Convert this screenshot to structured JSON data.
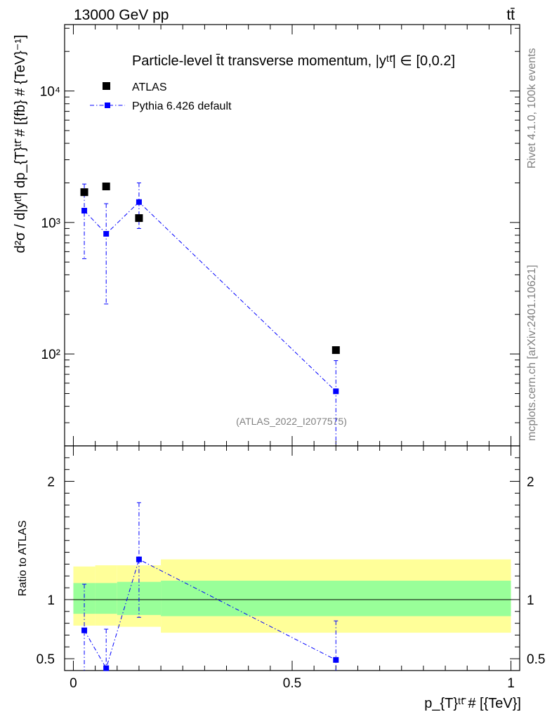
{
  "header": {
    "left": "13000 GeV pp",
    "right": "tt̄"
  },
  "side_labels": {
    "rivet": "Rivet 4.1.0,  100k events",
    "mcplots": "mcplots.cern.ch [arXiv:2401.10621]"
  },
  "chart_data": [
    {
      "type": "scatter",
      "panel": "main",
      "title": "Particle-level t̄t transverse momentum, |yᵗᵗ̄| ∈ [0,0.2]",
      "watermark": "(ATLAS_2022_I2077575)",
      "ylabel": "d²σ / d|yᵗᵗ̄| dp_{T}ᵗᵗ̄ # [{fb} # {TeV}⁻¹]",
      "xlim": [
        -0.02,
        1.02
      ],
      "ylim": [
        20,
        32000
      ],
      "yscale": "log",
      "ytick_labels": [
        "10²",
        "10³",
        "10⁴"
      ],
      "ytick_values": [
        100,
        1000,
        10000
      ],
      "legend": [
        "ATLAS",
        "Pythia 6.426 default"
      ],
      "series": [
        {
          "name": "ATLAS",
          "marker": "square",
          "color": "#000000",
          "x": [
            0.025,
            0.075,
            0.15,
            0.6
          ],
          "y": [
            1700,
            1880,
            1080,
            107
          ]
        },
        {
          "name": "Pythia 6.426 default",
          "marker": "square",
          "line": "dash-dot",
          "color": "#0000ff",
          "x": [
            0.025,
            0.075,
            0.15,
            0.6
          ],
          "y": [
            1230,
            820,
            1430,
            52
          ],
          "yerr_low": [
            700,
            580,
            530,
            32
          ],
          "yerr_high": [
            730,
            570,
            570,
            37
          ]
        }
      ]
    },
    {
      "type": "scatter",
      "panel": "ratio",
      "ylabel": "Ratio to ATLAS",
      "xlabel": "p_{T}ᵗᵗ̄ # [{TeV}]",
      "xlim": [
        -0.02,
        1.02
      ],
      "ylim": [
        0.4,
        2.3
      ],
      "xtick_labels": [
        "0",
        "0.5",
        "1"
      ],
      "xtick_values": [
        0,
        0.5,
        1
      ],
      "ytick_labels": [
        "0.5",
        "1",
        "2"
      ],
      "ytick_values": [
        0.5,
        1,
        2
      ],
      "bands": [
        {
          "x": [
            0.0,
            0.05
          ],
          "inner": [
            0.88,
            1.14
          ],
          "outer": [
            0.78,
            1.28
          ]
        },
        {
          "x": [
            0.05,
            0.1
          ],
          "inner": [
            0.88,
            1.14
          ],
          "outer": [
            0.78,
            1.29
          ]
        },
        {
          "x": [
            0.1,
            0.2
          ],
          "inner": [
            0.87,
            1.15
          ],
          "outer": [
            0.77,
            1.29
          ]
        },
        {
          "x": [
            0.2,
            1.0
          ],
          "inner": [
            0.86,
            1.16
          ],
          "outer": [
            0.72,
            1.34
          ]
        }
      ],
      "series": [
        {
          "name": "Pythia 6.426 default / ATLAS",
          "color": "#0000ff",
          "x": [
            0.025,
            0.075,
            0.15,
            0.6
          ],
          "y": [
            0.74,
            0.42,
            1.34,
            0.49
          ],
          "yerr_low": [
            0.35,
            0.25,
            0.49,
            0.25
          ],
          "yerr_high": [
            0.39,
            0.33,
            0.48,
            0.33
          ]
        }
      ]
    }
  ]
}
